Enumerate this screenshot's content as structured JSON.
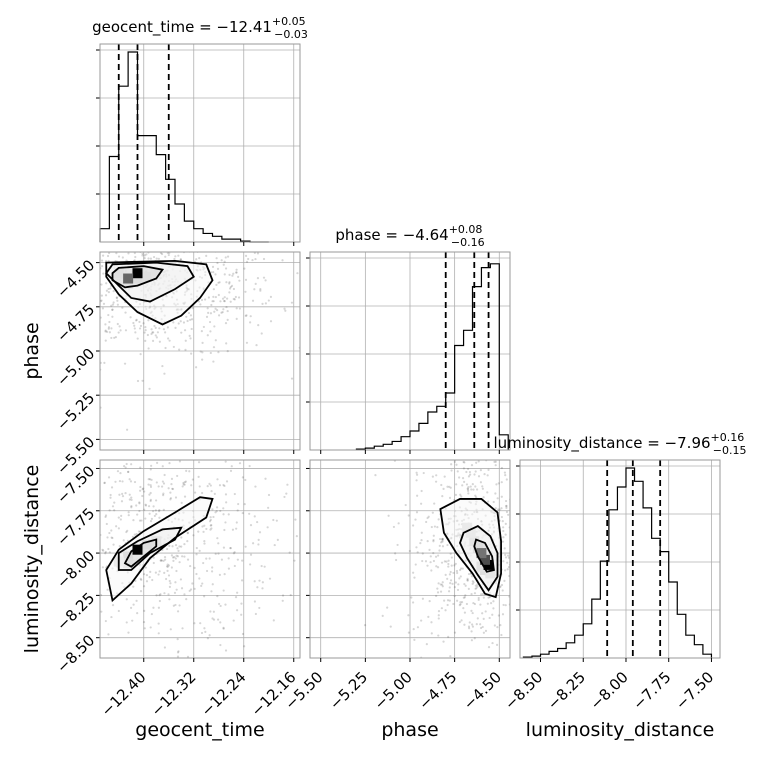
{
  "chart_data": {
    "type": "corner",
    "grid": true,
    "parameters": [
      {
        "name": "geocent_time",
        "title": {
          "prefix": "geocent_time = −12.41",
          "sup": "+0.05",
          "sub": "−0.03"
        },
        "range": [
          -12.47,
          -12.15
        ],
        "ticks": [
          -12.4,
          -12.32,
          -12.24,
          -12.16
        ],
        "tick_labels": [
          "−12.40",
          "−12.32",
          "−12.24",
          "−12.16"
        ],
        "quantiles": [
          -12.44,
          -12.41,
          -12.36
        ],
        "hist_edges": [
          -12.47,
          -12.455,
          -12.44,
          -12.425,
          -12.41,
          -12.395,
          -12.38,
          -12.365,
          -12.35,
          -12.335,
          -12.32,
          -12.305,
          -12.29,
          -12.275,
          -12.26,
          -12.245,
          -12.23,
          -12.215,
          -12.2
        ],
        "hist_counts": [
          0.07,
          0.45,
          0.82,
          1.0,
          0.56,
          0.56,
          0.46,
          0.33,
          0.2,
          0.11,
          0.07,
          0.045,
          0.03,
          0.015,
          0.015,
          0.005,
          0.0,
          0.0
        ]
      },
      {
        "name": "phase",
        "title": {
          "prefix": "phase = −4.64",
          "sup": "+0.08",
          "sub": "−0.16"
        },
        "range": [
          -5.56,
          -4.44
        ],
        "ticks": [
          -5.5,
          -5.25,
          -5.0,
          -4.75,
          -4.5
        ],
        "tick_labels": [
          "−5.50",
          "−5.25",
          "−5.00",
          "−4.75",
          "−4.50"
        ],
        "quantiles": [
          -4.8,
          -4.64,
          -4.56
        ],
        "hist_edges": [
          -5.3,
          -5.25,
          -5.2,
          -5.15,
          -5.1,
          -5.05,
          -5.0,
          -4.95,
          -4.9,
          -4.85,
          -4.8,
          -4.75,
          -4.7,
          -4.65,
          -4.6,
          -4.55,
          -4.5,
          -4.45
        ],
        "hist_counts": [
          0.005,
          0.01,
          0.02,
          0.03,
          0.045,
          0.07,
          0.1,
          0.14,
          0.2,
          0.23,
          0.3,
          0.55,
          0.63,
          0.86,
          0.96,
          0.98,
          0.08
        ]
      },
      {
        "name": "luminosity_distance",
        "title": {
          "prefix": "luminosity_distance = −7.96",
          "sup": "+0.16",
          "sub": "−0.15"
        },
        "range": [
          -8.62,
          -7.45
        ],
        "ticks": [
          -8.5,
          -8.25,
          -8.0,
          -7.75,
          -7.5
        ],
        "tick_labels": [
          "−8.50",
          "−8.25",
          "−8.00",
          "−7.75",
          "−7.50"
        ],
        "quantiles": [
          -8.11,
          -7.96,
          -7.8
        ],
        "hist_edges": [
          -8.6,
          -8.55,
          -8.5,
          -8.45,
          -8.4,
          -8.35,
          -8.3,
          -8.25,
          -8.2,
          -8.15,
          -8.1,
          -8.05,
          -8.0,
          -7.95,
          -7.9,
          -7.85,
          -7.8,
          -7.75,
          -7.7,
          -7.65,
          -7.6,
          -7.55,
          -7.5
        ],
        "hist_counts": [
          0.005,
          0.01,
          0.02,
          0.035,
          0.05,
          0.08,
          0.12,
          0.18,
          0.31,
          0.51,
          0.78,
          0.9,
          1.0,
          0.93,
          0.79,
          0.63,
          0.56,
          0.4,
          0.23,
          0.12,
          0.07,
          0.02
        ]
      }
    ],
    "pairs": [
      {
        "x": "geocent_time",
        "y": "phase",
        "row": 1,
        "col": 0,
        "y_ticks": [
          -5.5,
          -5.25,
          -5.0,
          -4.75,
          -4.5
        ],
        "y_tick_labels": [
          "−5.50",
          "−5.25",
          "−5.00",
          "−4.75",
          "−4.50"
        ],
        "scatter_center": [
          -12.41,
          -4.62
        ],
        "contours": [
          [
            [
              -12.44,
              -4.53
            ],
            [
              -12.4,
              -4.52
            ],
            [
              -12.37,
              -4.54
            ],
            [
              -12.38,
              -4.59
            ],
            [
              -12.41,
              -4.63
            ],
            [
              -12.43,
              -4.64
            ],
            [
              -12.45,
              -4.6
            ],
            [
              -12.45,
              -4.56
            ]
          ],
          [
            [
              -12.45,
              -4.51
            ],
            [
              -12.38,
              -4.5
            ],
            [
              -12.33,
              -4.52
            ],
            [
              -12.32,
              -4.58
            ],
            [
              -12.35,
              -4.65
            ],
            [
              -12.39,
              -4.72
            ],
            [
              -12.42,
              -4.7
            ],
            [
              -12.44,
              -4.63
            ],
            [
              -12.46,
              -4.56
            ]
          ],
          [
            [
              -12.46,
              -4.5
            ],
            [
              -12.35,
              -4.49
            ],
            [
              -12.3,
              -4.51
            ],
            [
              -12.29,
              -4.6
            ],
            [
              -12.31,
              -4.7
            ],
            [
              -12.34,
              -4.8
            ],
            [
              -12.37,
              -4.85
            ],
            [
              -12.41,
              -4.78
            ],
            [
              -12.44,
              -4.68
            ],
            [
              -12.46,
              -4.58
            ]
          ]
        ],
        "heat_cells": [
          [
            -12.41,
            -4.56,
            1.0
          ],
          [
            -12.425,
            -4.59,
            0.6
          ],
          [
            -12.41,
            -4.59,
            0.4
          ],
          [
            -12.395,
            -4.58,
            0.25
          ],
          [
            -12.425,
            -4.62,
            0.2
          ],
          [
            -12.44,
            -4.56,
            0.2
          ],
          [
            -12.38,
            -4.55,
            0.15
          ]
        ]
      },
      {
        "x": "geocent_time",
        "y": "luminosity_distance",
        "row": 2,
        "col": 0,
        "y_ticks": [
          -8.5,
          -8.25,
          -8.0,
          -7.75,
          -7.5
        ],
        "y_tick_labels": [
          "−8.50",
          "−8.25",
          "−8.00",
          "−7.75",
          "−7.50"
        ],
        "scatter_center": [
          -12.4,
          -7.96
        ],
        "contours": [
          [
            [
              -12.43,
              -8.06
            ],
            [
              -12.42,
              -7.99
            ],
            [
              -12.4,
              -7.94
            ],
            [
              -12.38,
              -7.92
            ],
            [
              -12.38,
              -7.96
            ],
            [
              -12.4,
              -8.02
            ],
            [
              -12.42,
              -8.08
            ]
          ],
          [
            [
              -12.44,
              -8.1
            ],
            [
              -12.44,
              -8.0
            ],
            [
              -12.41,
              -7.93
            ],
            [
              -12.37,
              -7.86
            ],
            [
              -12.34,
              -7.85
            ],
            [
              -12.35,
              -7.92
            ],
            [
              -12.39,
              -8.0
            ],
            [
              -12.42,
              -8.1
            ]
          ],
          [
            [
              -12.45,
              -8.28
            ],
            [
              -12.46,
              -8.1
            ],
            [
              -12.44,
              -7.98
            ],
            [
              -12.4,
              -7.87
            ],
            [
              -12.35,
              -7.76
            ],
            [
              -12.31,
              -7.67
            ],
            [
              -12.29,
              -7.68
            ],
            [
              -12.3,
              -7.79
            ],
            [
              -12.35,
              -7.91
            ],
            [
              -12.39,
              -8.03
            ],
            [
              -12.42,
              -8.18
            ]
          ]
        ],
        "heat_cells": [
          [
            -12.41,
            -7.98,
            1.0
          ],
          [
            -12.425,
            -8.02,
            0.45
          ],
          [
            -12.395,
            -7.95,
            0.4
          ],
          [
            -12.38,
            -7.93,
            0.25
          ],
          [
            -12.425,
            -8.06,
            0.25
          ],
          [
            -12.44,
            -8.05,
            0.15
          ]
        ]
      },
      {
        "x": "phase",
        "y": "luminosity_distance",
        "row": 2,
        "col": 1,
        "y_ticks": [
          -8.5,
          -8.25,
          -8.0,
          -7.75,
          -7.5
        ],
        "y_tick_labels": [],
        "scatter_center": [
          -4.64,
          -7.96
        ],
        "contours": [
          [
            [
              -4.63,
              -7.92
            ],
            [
              -4.58,
              -7.94
            ],
            [
              -4.54,
              -8.02
            ],
            [
              -4.53,
              -8.1
            ],
            [
              -4.57,
              -8.11
            ],
            [
              -4.62,
              -8.02
            ],
            [
              -4.64,
              -7.96
            ]
          ],
          [
            [
              -4.7,
              -7.88
            ],
            [
              -4.62,
              -7.84
            ],
            [
              -4.55,
              -7.9
            ],
            [
              -4.51,
              -8.0
            ],
            [
              -4.51,
              -8.14
            ],
            [
              -4.56,
              -8.22
            ],
            [
              -4.62,
              -8.13
            ],
            [
              -4.68,
              -8.03
            ],
            [
              -4.72,
              -7.94
            ]
          ],
          [
            [
              -4.83,
              -7.74
            ],
            [
              -4.72,
              -7.68
            ],
            [
              -4.6,
              -7.68
            ],
            [
              -4.51,
              -7.76
            ],
            [
              -4.49,
              -7.93
            ],
            [
              -4.49,
              -8.12
            ],
            [
              -4.52,
              -8.26
            ],
            [
              -4.58,
              -8.24
            ],
            [
              -4.65,
              -8.12
            ],
            [
              -4.74,
              -8.0
            ],
            [
              -4.81,
              -7.88
            ]
          ]
        ],
        "heat_cells": [
          [
            -4.56,
            -8.07,
            1.0
          ],
          [
            -4.58,
            -8.04,
            0.7
          ],
          [
            -4.6,
            -8.0,
            0.55
          ],
          [
            -4.62,
            -7.97,
            0.4
          ],
          [
            -4.58,
            -8.1,
            0.45
          ],
          [
            -4.64,
            -7.93,
            0.3
          ],
          [
            -4.66,
            -7.88,
            0.2
          ],
          [
            -4.55,
            -8.12,
            0.3
          ],
          [
            -4.68,
            -7.85,
            0.15
          ],
          [
            -4.6,
            -8.08,
            0.35
          ]
        ]
      }
    ]
  }
}
